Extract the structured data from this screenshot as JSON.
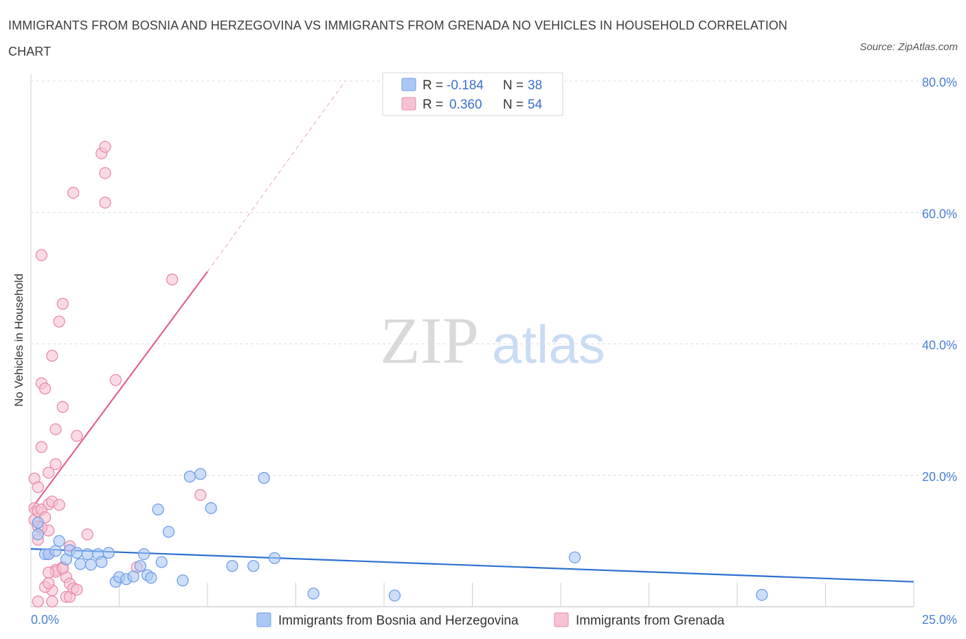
{
  "title": "IMMIGRANTS FROM BOSNIA AND HERZEGOVINA VS IMMIGRANTS FROM GRENADA NO VEHICLES IN HOUSEHOLD CORRELATION CHART",
  "source": "Source: ZipAtlas.com",
  "watermark": {
    "zip": "ZIP",
    "atlas": "atlas"
  },
  "chart_data": {
    "type": "scatter",
    "title": "IMMIGRANTS FROM BOSNIA AND HERZEGOVINA VS IMMIGRANTS FROM GRENADA NO VEHICLES IN HOUSEHOLD CORRELATION CHART",
    "xlabel": "",
    "ylabel": "No Vehicles in Household",
    "xlim": [
      0,
      25
    ],
    "ylim": [
      0,
      80
    ],
    "x_tick_labels": [
      "0.0%",
      "25.0%"
    ],
    "y_ticks": [
      20,
      40,
      60,
      80
    ],
    "y_tick_labels": [
      "20.0%",
      "40.0%",
      "60.0%",
      "80.0%"
    ],
    "legend_position": "top-center",
    "series": [
      {
        "name": "Immigrants from Bosnia and Herzegovina",
        "color": "#6f9ee8",
        "fill": "#aac8f3",
        "R": "-0.184",
        "N": "38",
        "trend": {
          "x0": 0,
          "y0": 8.8,
          "x1": 25,
          "y1": 3.8,
          "color": "#2b6fd0"
        },
        "points": [
          [
            0.2,
            12.8
          ],
          [
            0.2,
            11.0
          ],
          [
            0.4,
            8.0
          ],
          [
            0.5,
            8.0
          ],
          [
            0.7,
            8.5
          ],
          [
            0.8,
            10.0
          ],
          [
            1.0,
            7.2
          ],
          [
            1.1,
            8.6
          ],
          [
            1.3,
            8.2
          ],
          [
            1.4,
            6.5
          ],
          [
            1.6,
            8.0
          ],
          [
            1.7,
            6.4
          ],
          [
            1.9,
            8.0
          ],
          [
            2.0,
            6.8
          ],
          [
            2.2,
            8.2
          ],
          [
            2.4,
            3.8
          ],
          [
            2.5,
            4.5
          ],
          [
            2.7,
            4.2
          ],
          [
            2.9,
            4.6
          ],
          [
            3.1,
            6.2
          ],
          [
            3.2,
            8.0
          ],
          [
            3.3,
            4.8
          ],
          [
            3.4,
            4.4
          ],
          [
            3.7,
            6.8
          ],
          [
            3.6,
            14.8
          ],
          [
            3.9,
            11.4
          ],
          [
            4.3,
            4.0
          ],
          [
            4.5,
            19.8
          ],
          [
            4.8,
            20.2
          ],
          [
            5.1,
            15.0
          ],
          [
            5.7,
            6.2
          ],
          [
            6.3,
            6.2
          ],
          [
            6.6,
            19.6
          ],
          [
            6.9,
            7.4
          ],
          [
            8.0,
            2.0
          ],
          [
            10.3,
            1.7
          ],
          [
            15.4,
            7.5
          ],
          [
            20.7,
            1.8
          ]
        ]
      },
      {
        "name": "Immigrants from Grenada",
        "color": "#e98aa8",
        "fill": "#f7c3d3",
        "R": "0.360",
        "N": "54",
        "trend": {
          "x0": 0,
          "y0": 14.8,
          "x1": 5.0,
          "y1": 51.0,
          "color": "#e0638c"
        },
        "trend_extension": {
          "x0": 5.0,
          "y0": 51.0,
          "x1": 8.9,
          "y1": 80.0
        },
        "points": [
          [
            0.1,
            19.5
          ],
          [
            0.1,
            15.0
          ],
          [
            0.1,
            13.2
          ],
          [
            0.2,
            12.2
          ],
          [
            0.2,
            18.2
          ],
          [
            0.2,
            10.2
          ],
          [
            0.2,
            14.5
          ],
          [
            0.3,
            53.5
          ],
          [
            0.3,
            14.8
          ],
          [
            0.3,
            24.3
          ],
          [
            0.3,
            34.0
          ],
          [
            0.4,
            33.2
          ],
          [
            0.4,
            13.6
          ],
          [
            0.5,
            11.6
          ],
          [
            0.5,
            8.0
          ],
          [
            0.5,
            20.4
          ],
          [
            0.5,
            15.6
          ],
          [
            0.6,
            16.0
          ],
          [
            0.6,
            38.2
          ],
          [
            0.6,
            2.5
          ],
          [
            0.7,
            5.6
          ],
          [
            0.7,
            21.7
          ],
          [
            0.7,
            27.0
          ],
          [
            0.7,
            5.3
          ],
          [
            0.8,
            43.4
          ],
          [
            0.8,
            15.5
          ],
          [
            0.9,
            46.1
          ],
          [
            0.9,
            30.4
          ],
          [
            0.9,
            6.0
          ],
          [
            1.0,
            4.5
          ],
          [
            1.0,
            1.5
          ],
          [
            1.1,
            3.5
          ],
          [
            1.1,
            9.2
          ],
          [
            1.1,
            1.5
          ],
          [
            1.2,
            2.8
          ],
          [
            1.3,
            26.0
          ],
          [
            1.2,
            63.0
          ],
          [
            1.6,
            11.0
          ],
          [
            2.0,
            69.0
          ],
          [
            2.1,
            66.0
          ],
          [
            2.1,
            70.0
          ],
          [
            2.1,
            61.5
          ],
          [
            2.4,
            34.5
          ],
          [
            3.0,
            6.0
          ],
          [
            4.0,
            49.8
          ],
          [
            4.8,
            17.0
          ],
          [
            0.2,
            0.8
          ],
          [
            0.4,
            3.0
          ],
          [
            0.6,
            0.8
          ],
          [
            0.5,
            3.6
          ],
          [
            0.9,
            5.8
          ],
          [
            0.5,
            5.2
          ],
          [
            1.3,
            2.6
          ],
          [
            0.3,
            12.0
          ]
        ]
      }
    ]
  }
}
